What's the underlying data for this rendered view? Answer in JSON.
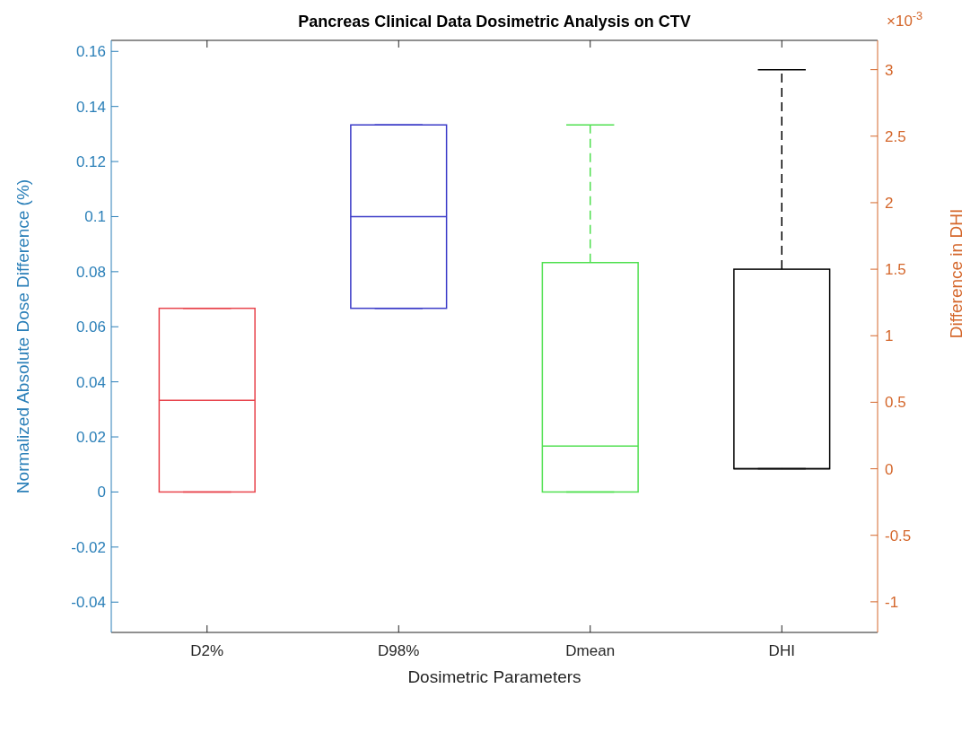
{
  "chart_data": {
    "type": "box",
    "title": "Pancreas Clinical Data Dosimetric Analysis on CTV",
    "xlabel": "Dosimetric Parameters",
    "ylabel": "Normalized Absolute Dose Difference (%)",
    "y2label": "Difference in DHI",
    "categories": [
      "D2%",
      "D98%",
      "Dmean",
      "DHI"
    ],
    "series": [
      {
        "color": "#e8444c",
        "boxes": [
          {
            "low": 0,
            "q1": 0,
            "median": 0.0333,
            "q3": 0.0667,
            "high": 0.0667
          },
          null,
          null,
          null
        ]
      },
      {
        "color": "#3c3cc8",
        "boxes": [
          null,
          {
            "low": 0.0667,
            "q1": 0.0667,
            "median": 0.1,
            "q3": 0.1333,
            "high": 0.1333
          },
          null,
          null
        ]
      },
      {
        "color": "#50e050",
        "boxes": [
          null,
          null,
          {
            "low": 0,
            "q1": 0,
            "median": 0.0167,
            "q3": 0.0833,
            "high": 0.1333
          },
          null
        ]
      },
      {
        "color": "#000000",
        "axis": "y2",
        "boxes": [
          null,
          null,
          null,
          {
            "low": 0,
            "q1": 0,
            "median": 0,
            "q3": 1.5,
            "high": 3
          }
        ]
      }
    ],
    "ylim": [
      -0.051,
      0.164
    ],
    "yticks": [
      -0.04,
      -0.02,
      0,
      0.02,
      0.04,
      0.06,
      0.08,
      0.1,
      0.12,
      0.14,
      0.16
    ],
    "y2lim": [
      -1.23,
      3.22
    ],
    "y2ticks": [
      -1,
      -0.5,
      0,
      0.5,
      1,
      1.5,
      2,
      2.5,
      3
    ],
    "annotations": [
      "×10$^{-3}$"
    ],
    "line_style": "dashed",
    "grid": false
  }
}
